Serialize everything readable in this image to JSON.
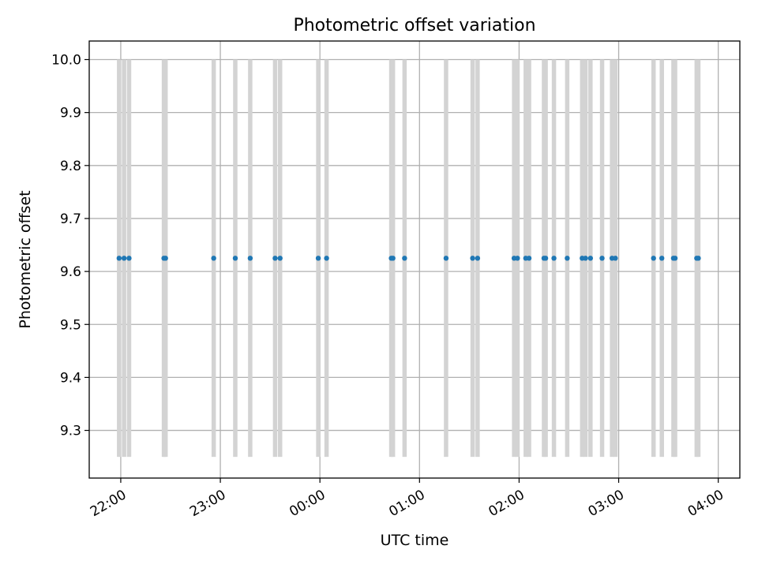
{
  "chart_data": {
    "type": "scatter",
    "title": "Photometric offset variation",
    "xlabel": "UTC time",
    "ylabel": "Photometric offset",
    "x_ticks": [
      "22:00",
      "23:00",
      "00:00",
      "01:00",
      "02:00",
      "03:00",
      "04:00"
    ],
    "y_ticks": [
      "9.3",
      "9.4",
      "9.5",
      "9.6",
      "9.7",
      "9.8",
      "9.9",
      "10.0"
    ],
    "xlim": [
      "21:41",
      "04:13"
    ],
    "ylim": [
      9.21,
      10.035
    ],
    "grid": true,
    "colors": {
      "points": "#1f77b4",
      "bands": "#d3d3d3",
      "grid": "#b0b0b0"
    },
    "band_range": [
      9.25,
      10.0
    ],
    "x_times": [
      "21:59",
      "22:02",
      "22:05",
      "22:26",
      "22:27",
      "22:56",
      "23:09",
      "23:18",
      "23:33",
      "23:36",
      "23:59",
      "00:04",
      "00:43",
      "00:44",
      "00:51",
      "01:16",
      "01:32",
      "01:35",
      "01:57",
      "01:59",
      "02:04",
      "02:06",
      "02:15",
      "02:16",
      "02:21",
      "02:29",
      "02:38",
      "02:40",
      "02:43",
      "02:50",
      "02:56",
      "02:58",
      "03:21",
      "03:26",
      "03:33",
      "03:34",
      "03:47",
      "03:48"
    ],
    "y": 9.625
  }
}
